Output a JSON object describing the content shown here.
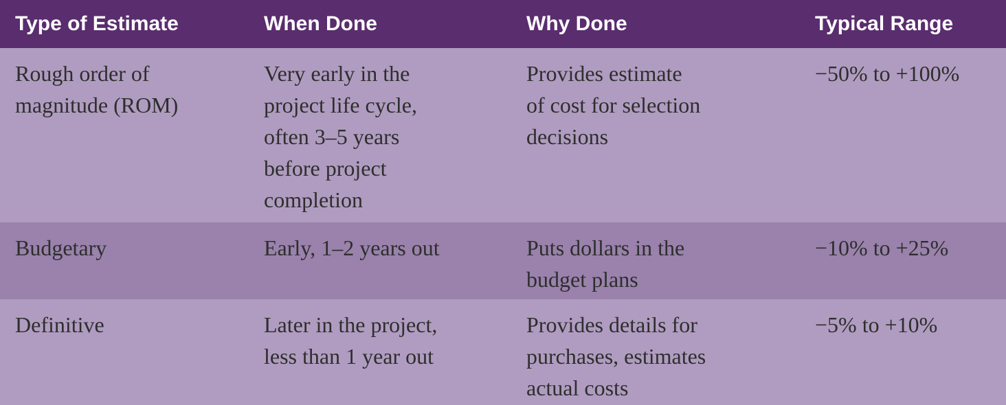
{
  "table": {
    "headers": [
      "Type of Estimate",
      "When Done",
      "Why Done",
      "Typical Range"
    ],
    "rows": [
      {
        "type": [
          "Rough order of",
          "magnitude (ROM)"
        ],
        "when": [
          "Very early in the",
          "project life cycle,",
          "often 3–5 years",
          "before project",
          "completion"
        ],
        "why": [
          "Provides estimate",
          "of cost for selection",
          "decisions"
        ],
        "range": [
          "−50% to +100%"
        ]
      },
      {
        "type": [
          "Budgetary"
        ],
        "when": [
          "Early, 1–2 years out"
        ],
        "why": [
          "Puts dollars in the",
          "budget plans"
        ],
        "range": [
          "−10% to +25%"
        ]
      },
      {
        "type": [
          "Definitive"
        ],
        "when": [
          "Later in the project,",
          "less than 1 year out"
        ],
        "why": [
          "Provides details for",
          "purchases, estimates",
          "actual costs"
        ],
        "range": [
          "−5% to +10%"
        ]
      }
    ]
  },
  "colors": {
    "header_bg": "#5a2d6e",
    "row_light": "#b09cc0",
    "row_dark": "#9a82ac",
    "header_text": "#ffffff",
    "body_text": "#2e2e2e"
  }
}
